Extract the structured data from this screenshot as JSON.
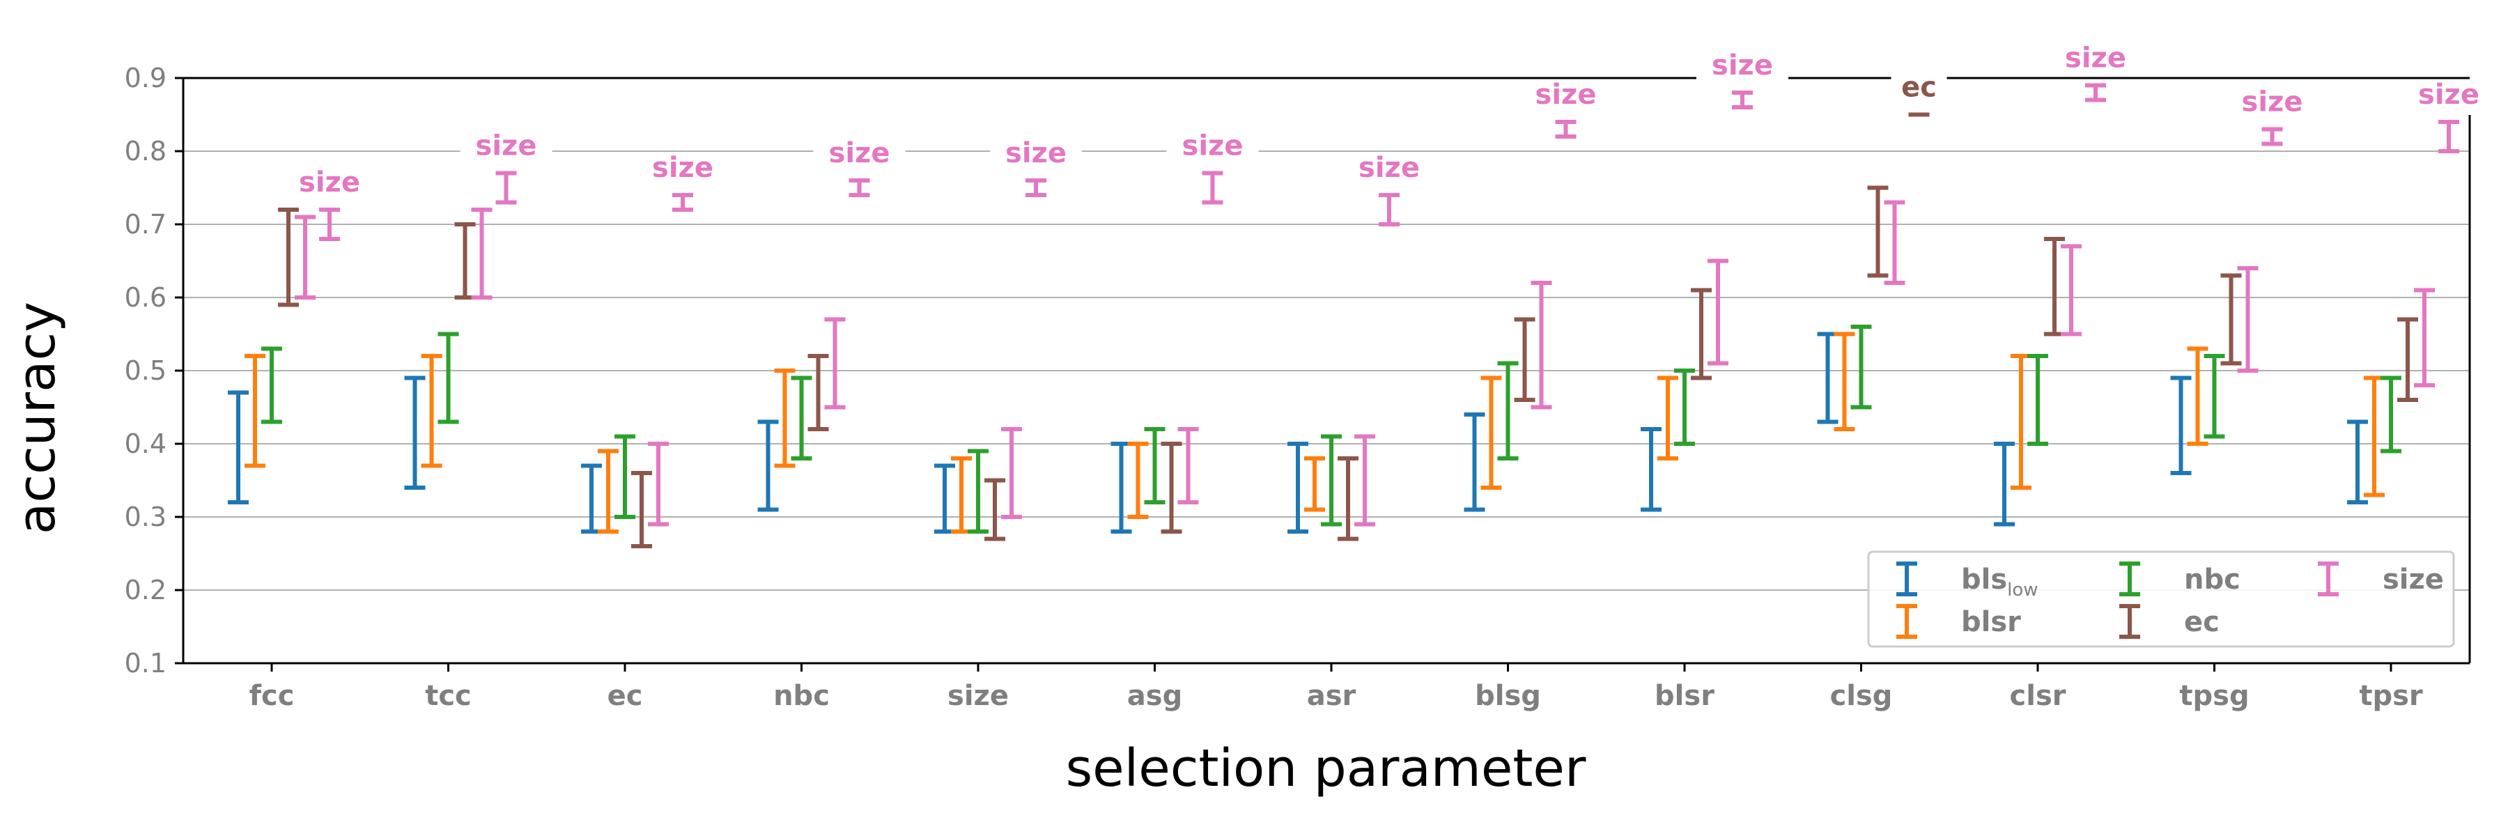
{
  "chart_data": {
    "type": "errorbar",
    "xlabel": "selection parameter",
    "ylabel": "accuracy",
    "ylim": [
      0.1,
      0.9
    ],
    "yticks": [
      "0.1",
      "0.2",
      "0.3",
      "0.4",
      "0.5",
      "0.6",
      "0.7",
      "0.8",
      "0.9"
    ],
    "grid": "horizontal",
    "legend_position": "lower-right",
    "categories": [
      "fcc",
      "tcc",
      "ec",
      "nbc",
      "size",
      "asg",
      "asr",
      "blsg",
      "blsr",
      "clsg",
      "clsr",
      "tpsg",
      "tpsr"
    ],
    "series": [
      {
        "key": "bls_low",
        "name": "bls",
        "subscript": "low",
        "color": "#1f77b4",
        "low": [
          0.32,
          0.34,
          0.28,
          0.31,
          0.28,
          0.28,
          0.28,
          0.31,
          0.31,
          0.43,
          0.29,
          0.36,
          0.32
        ],
        "high": [
          0.47,
          0.49,
          0.37,
          0.43,
          0.37,
          0.4,
          0.4,
          0.44,
          0.42,
          0.55,
          0.4,
          0.49,
          0.43
        ]
      },
      {
        "key": "blsr",
        "name": "blsr",
        "color": "#ff7f0e",
        "low": [
          0.37,
          0.37,
          0.28,
          0.37,
          0.28,
          0.3,
          0.31,
          0.34,
          0.38,
          0.42,
          0.34,
          0.4,
          0.33
        ],
        "high": [
          0.52,
          0.52,
          0.39,
          0.5,
          0.38,
          0.4,
          0.38,
          0.49,
          0.49,
          0.55,
          0.52,
          0.53,
          0.49
        ]
      },
      {
        "key": "nbc",
        "name": "nbc",
        "color": "#2ca02c",
        "low": [
          0.43,
          0.43,
          0.3,
          0.38,
          0.28,
          0.32,
          0.29,
          0.38,
          0.4,
          0.45,
          0.4,
          0.41,
          0.39
        ],
        "high": [
          0.53,
          0.55,
          0.41,
          0.49,
          0.39,
          0.42,
          0.41,
          0.51,
          0.5,
          0.56,
          0.52,
          0.52,
          0.49
        ]
      },
      {
        "key": "ec",
        "name": "ec",
        "color": "#8c564b",
        "low": [
          0.59,
          0.6,
          0.26,
          0.42,
          0.27,
          0.28,
          0.27,
          0.46,
          0.49,
          0.63,
          0.55,
          0.51,
          0.46
        ],
        "high": [
          0.72,
          0.7,
          0.36,
          0.52,
          0.35,
          0.4,
          0.38,
          0.57,
          0.61,
          0.75,
          0.68,
          0.63,
          0.57
        ]
      },
      {
        "key": "size",
        "name": "size",
        "color": "#e377c2",
        "low": [
          0.6,
          0.6,
          0.29,
          0.45,
          0.3,
          0.32,
          0.29,
          0.45,
          0.51,
          0.62,
          0.55,
          0.5,
          0.48
        ],
        "high": [
          0.71,
          0.72,
          0.4,
          0.57,
          0.42,
          0.42,
          0.41,
          0.62,
          0.65,
          0.73,
          0.67,
          0.64,
          0.61
        ]
      }
    ],
    "best_markers": [
      {
        "low": 0.68,
        "high": 0.72,
        "label": "size",
        "color": "#e377c2"
      },
      {
        "low": 0.73,
        "high": 0.77,
        "label": "size",
        "color": "#e377c2"
      },
      {
        "low": 0.72,
        "high": 0.74,
        "label": "size",
        "color": "#e377c2"
      },
      {
        "low": 0.74,
        "high": 0.76,
        "label": "size",
        "color": "#e377c2"
      },
      {
        "low": 0.74,
        "high": 0.76,
        "label": "size",
        "color": "#e377c2"
      },
      {
        "low": 0.73,
        "high": 0.77,
        "label": "size",
        "color": "#e377c2"
      },
      {
        "low": 0.7,
        "high": 0.74,
        "label": "size",
        "color": "#e377c2"
      },
      {
        "low": 0.82,
        "high": 0.84,
        "label": "size",
        "color": "#e377c2"
      },
      {
        "low": 0.86,
        "high": 0.88,
        "label": "size",
        "color": "#e377c2"
      },
      {
        "low": 0.85,
        "high": 0.85,
        "label": "ec",
        "color": "#8c564b"
      },
      {
        "low": 0.87,
        "high": 0.89,
        "label": "size",
        "color": "#e377c2"
      },
      {
        "low": 0.81,
        "high": 0.83,
        "label": "size",
        "color": "#e377c2"
      },
      {
        "low": 0.8,
        "high": 0.84,
        "label": "size",
        "color": "#e377c2"
      }
    ],
    "colors": {
      "axis": "#000000",
      "grid": "#b0b0b0",
      "tick_text": "#7f7f7f",
      "legend_border": "#cccccc"
    }
  }
}
